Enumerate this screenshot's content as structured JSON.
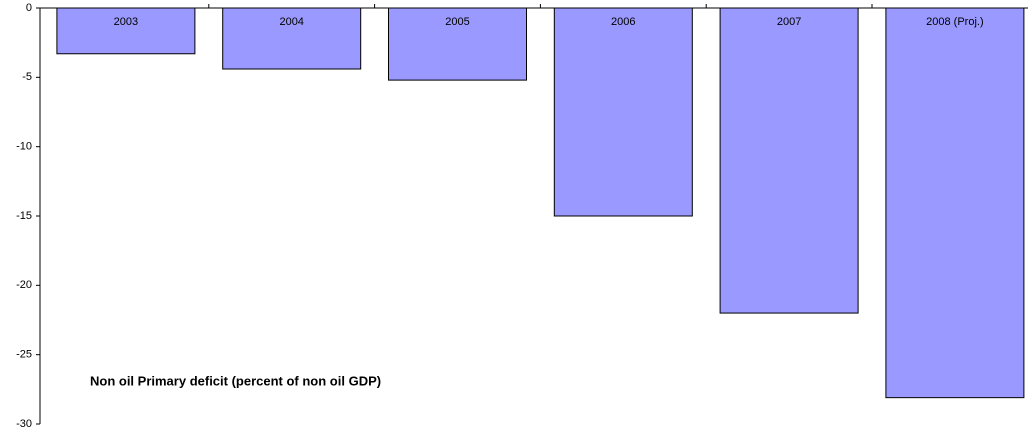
{
  "chart_data": {
    "type": "bar",
    "annotation": "Non oil Primary deficit (percent of non oil GDP)",
    "categories": [
      "2003",
      "2004",
      "2005",
      "2006",
      "2007",
      "2008 (Proj.)"
    ],
    "values": [
      -3.3,
      -4.4,
      -5.2,
      -15,
      -22,
      -28.1
    ],
    "color": "#9999ff",
    "ylim": [
      -30,
      0
    ],
    "yticks": [
      0,
      -5,
      -10,
      -15,
      -20,
      -25,
      -30
    ]
  }
}
